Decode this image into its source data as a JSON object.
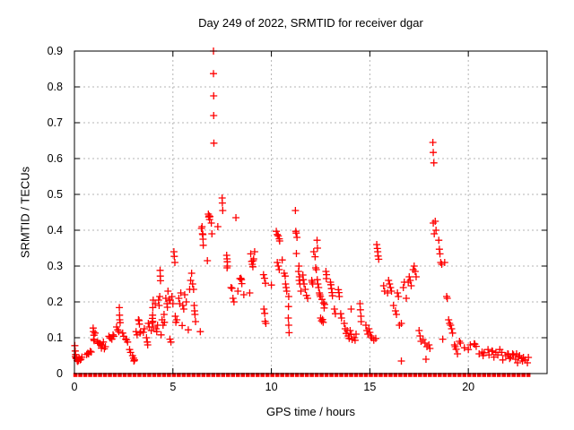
{
  "title": "Day 249 of 2022, SRMTID for receiver dgar",
  "colors": {
    "marker": "#ff0000",
    "grid": "#b4b4b4",
    "axis": "#000000",
    "background": "#ffffff"
  },
  "chart_data": {
    "type": "scatter",
    "title": "Day 249 of 2022, SRMTID for receiver dgar",
    "xlabel": "GPS time / hours",
    "ylabel": "SRMTID / TECUs",
    "xlim": [
      0,
      24
    ],
    "ylim": [
      0,
      0.9
    ],
    "xticks": [
      0,
      5,
      10,
      15,
      20
    ],
    "yticks": [
      0,
      0.1,
      0.2,
      0.3,
      0.4,
      0.5,
      0.6,
      0.7,
      0.8,
      0.9
    ],
    "grid": true,
    "legend": "none",
    "marker": "plus",
    "marker_color": "#ff0000",
    "zero_baseline": {
      "y": 0,
      "x_start": 0.05,
      "x_end": 23.15,
      "x_step": 0.25,
      "note": "dense overlapping points at SRMTID=0 forming a solid red strip"
    },
    "points": [
      [
        0.02,
        0.078
      ],
      [
        0.04,
        0.063
      ],
      [
        0.06,
        0.053
      ],
      [
        0.05,
        0.047
      ],
      [
        0.08,
        0.042
      ],
      [
        0.1,
        0.044
      ],
      [
        0.14,
        0.036
      ],
      [
        0.17,
        0.034
      ],
      [
        0.2,
        0.037
      ],
      [
        0.24,
        0.043
      ],
      [
        0.29,
        0.038
      ],
      [
        0.33,
        0.04
      ],
      [
        0.38,
        0.046
      ],
      [
        0.62,
        0.053
      ],
      [
        0.68,
        0.057
      ],
      [
        0.72,
        0.055
      ],
      [
        0.8,
        0.062
      ],
      [
        0.85,
        0.06
      ],
      [
        0.95,
        0.127
      ],
      [
        0.97,
        0.117
      ],
      [
        0.99,
        0.107
      ],
      [
        0.98,
        0.096
      ],
      [
        1.0,
        0.092
      ],
      [
        1.05,
        0.113
      ],
      [
        1.17,
        0.088
      ],
      [
        1.22,
        0.084
      ],
      [
        1.27,
        0.084
      ],
      [
        1.32,
        0.083
      ],
      [
        1.37,
        0.071
      ],
      [
        1.42,
        0.08
      ],
      [
        1.47,
        0.088
      ],
      [
        1.52,
        0.069
      ],
      [
        1.57,
        0.075
      ],
      [
        1.75,
        0.104
      ],
      [
        1.8,
        0.1
      ],
      [
        1.83,
        0.099
      ],
      [
        1.9,
        0.096
      ],
      [
        1.96,
        0.108
      ],
      [
        2.0,
        0.104
      ],
      [
        2.14,
        0.13
      ],
      [
        2.2,
        0.122
      ],
      [
        2.25,
        0.117
      ],
      [
        2.28,
        0.184
      ],
      [
        2.29,
        0.163
      ],
      [
        2.3,
        0.15
      ],
      [
        2.32,
        0.142
      ],
      [
        2.45,
        0.113
      ],
      [
        2.5,
        0.104
      ],
      [
        2.6,
        0.096
      ],
      [
        2.65,
        0.094
      ],
      [
        2.7,
        0.088
      ],
      [
        2.8,
        0.067
      ],
      [
        2.85,
        0.059
      ],
      [
        2.95,
        0.05
      ],
      [
        3.0,
        0.043
      ],
      [
        3.02,
        0.035
      ],
      [
        3.05,
        0.038
      ],
      [
        3.13,
        0.117
      ],
      [
        3.18,
        0.108
      ],
      [
        3.25,
        0.15
      ],
      [
        3.28,
        0.148
      ],
      [
        3.3,
        0.138
      ],
      [
        3.33,
        0.113
      ],
      [
        3.36,
        0.117
      ],
      [
        3.5,
        0.115
      ],
      [
        3.55,
        0.125
      ],
      [
        3.66,
        0.1
      ],
      [
        3.7,
        0.088
      ],
      [
        3.72,
        0.08
      ],
      [
        3.75,
        0.14
      ],
      [
        3.8,
        0.13
      ],
      [
        3.9,
        0.12
      ],
      [
        3.95,
        0.142
      ],
      [
        3.96,
        0.154
      ],
      [
        3.97,
        0.163
      ],
      [
        3.98,
        0.184
      ],
      [
        4.0,
        0.205
      ],
      [
        3.98,
        0.146
      ],
      [
        3.99,
        0.13
      ],
      [
        4.1,
        0.195
      ],
      [
        4.15,
        0.125
      ],
      [
        4.18,
        0.117
      ],
      [
        4.22,
        0.135
      ],
      [
        4.27,
        0.205
      ],
      [
        4.3,
        0.19
      ],
      [
        4.33,
        0.215
      ],
      [
        4.35,
        0.288
      ],
      [
        4.36,
        0.272
      ],
      [
        4.37,
        0.259
      ],
      [
        4.4,
        0.108
      ],
      [
        4.45,
        0.15
      ],
      [
        4.5,
        0.135
      ],
      [
        4.55,
        0.165
      ],
      [
        4.57,
        0.143
      ],
      [
        4.64,
        0.21
      ],
      [
        4.7,
        0.195
      ],
      [
        4.72,
        0.185
      ],
      [
        4.75,
        0.23
      ],
      [
        4.8,
        0.205
      ],
      [
        4.87,
        0.205
      ],
      [
        4.85,
        0.096
      ],
      [
        4.9,
        0.088
      ],
      [
        4.95,
        0.215
      ],
      [
        5.0,
        0.195
      ],
      [
        5.05,
        0.34
      ],
      [
        5.07,
        0.327
      ],
      [
        5.1,
        0.31
      ],
      [
        5.12,
        0.16
      ],
      [
        5.15,
        0.143
      ],
      [
        5.2,
        0.15
      ],
      [
        5.3,
        0.21
      ],
      [
        5.35,
        0.195
      ],
      [
        5.4,
        0.225
      ],
      [
        5.47,
        0.134
      ],
      [
        5.5,
        0.19
      ],
      [
        5.55,
        0.18
      ],
      [
        5.6,
        0.22
      ],
      [
        5.68,
        0.2
      ],
      [
        5.78,
        0.122
      ],
      [
        5.85,
        0.235
      ],
      [
        5.9,
        0.26
      ],
      [
        5.95,
        0.28
      ],
      [
        6.0,
        0.25
      ],
      [
        6.05,
        0.235
      ],
      [
        6.08,
        0.19
      ],
      [
        6.1,
        0.175
      ],
      [
        6.12,
        0.165
      ],
      [
        6.15,
        0.145
      ],
      [
        6.39,
        0.117
      ],
      [
        6.45,
        0.405
      ],
      [
        6.48,
        0.41
      ],
      [
        6.5,
        0.39
      ],
      [
        6.52,
        0.388
      ],
      [
        6.53,
        0.375
      ],
      [
        6.54,
        0.358
      ],
      [
        6.75,
        0.315
      ],
      [
        6.8,
        0.445
      ],
      [
        6.82,
        0.437
      ],
      [
        6.84,
        0.44
      ],
      [
        6.86,
        0.43
      ],
      [
        6.88,
        0.438
      ],
      [
        6.95,
        0.42
      ],
      [
        6.98,
        0.39
      ],
      [
        7.06,
        0.9
      ],
      [
        7.06,
        0.837
      ],
      [
        7.07,
        0.775
      ],
      [
        7.07,
        0.72
      ],
      [
        7.08,
        0.643
      ],
      [
        7.28,
        0.41
      ],
      [
        7.5,
        0.49
      ],
      [
        7.51,
        0.476
      ],
      [
        7.53,
        0.455
      ],
      [
        7.73,
        0.33
      ],
      [
        7.75,
        0.32
      ],
      [
        7.76,
        0.312
      ],
      [
        7.77,
        0.3
      ],
      [
        7.75,
        0.295
      ],
      [
        7.95,
        0.24
      ],
      [
        8.0,
        0.238
      ],
      [
        8.05,
        0.21
      ],
      [
        8.1,
        0.2
      ],
      [
        8.2,
        0.435
      ],
      [
        8.3,
        0.23
      ],
      [
        8.4,
        0.265
      ],
      [
        8.45,
        0.266
      ],
      [
        8.48,
        0.262
      ],
      [
        8.5,
        0.251
      ],
      [
        8.6,
        0.22
      ],
      [
        8.9,
        0.225
      ],
      [
        8.95,
        0.334
      ],
      [
        9.0,
        0.313
      ],
      [
        9.03,
        0.305
      ],
      [
        9.06,
        0.298
      ],
      [
        9.08,
        0.315
      ],
      [
        9.1,
        0.32
      ],
      [
        9.15,
        0.34
      ],
      [
        9.6,
        0.276
      ],
      [
        9.65,
        0.266
      ],
      [
        9.7,
        0.252
      ],
      [
        9.62,
        0.18
      ],
      [
        9.66,
        0.168
      ],
      [
        9.68,
        0.146
      ],
      [
        9.72,
        0.14
      ],
      [
        10.0,
        0.247
      ],
      [
        10.25,
        0.397
      ],
      [
        10.3,
        0.388
      ],
      [
        10.35,
        0.384
      ],
      [
        10.4,
        0.376
      ],
      [
        10.42,
        0.37
      ],
      [
        10.3,
        0.31
      ],
      [
        10.35,
        0.3
      ],
      [
        10.4,
        0.29
      ],
      [
        10.55,
        0.317
      ],
      [
        10.65,
        0.28
      ],
      [
        10.7,
        0.272
      ],
      [
        10.72,
        0.25
      ],
      [
        10.75,
        0.24
      ],
      [
        10.78,
        0.23
      ],
      [
        10.88,
        0.215
      ],
      [
        10.87,
        0.187
      ],
      [
        10.86,
        0.155
      ],
      [
        10.88,
        0.135
      ],
      [
        10.9,
        0.114
      ],
      [
        11.22,
        0.455
      ],
      [
        11.24,
        0.397
      ],
      [
        11.26,
        0.392
      ],
      [
        11.3,
        0.38
      ],
      [
        11.27,
        0.335
      ],
      [
        11.38,
        0.285
      ],
      [
        11.4,
        0.3
      ],
      [
        11.42,
        0.27
      ],
      [
        11.41,
        0.26
      ],
      [
        11.45,
        0.25
      ],
      [
        11.5,
        0.23
      ],
      [
        11.6,
        0.275
      ],
      [
        11.62,
        0.262
      ],
      [
        11.66,
        0.25
      ],
      [
        11.72,
        0.235
      ],
      [
        11.78,
        0.218
      ],
      [
        11.84,
        0.21
      ],
      [
        12.05,
        0.26
      ],
      [
        12.07,
        0.255
      ],
      [
        12.1,
        0.25
      ],
      [
        12.15,
        0.34
      ],
      [
        12.22,
        0.326
      ],
      [
        12.25,
        0.295
      ],
      [
        12.28,
        0.29
      ],
      [
        12.32,
        0.372
      ],
      [
        12.34,
        0.35
      ],
      [
        12.33,
        0.262
      ],
      [
        12.36,
        0.25
      ],
      [
        12.4,
        0.24
      ],
      [
        12.44,
        0.225
      ],
      [
        12.46,
        0.22
      ],
      [
        12.49,
        0.215
      ],
      [
        12.5,
        0.155
      ],
      [
        12.55,
        0.147
      ],
      [
        12.6,
        0.151
      ],
      [
        12.63,
        0.143
      ],
      [
        12.57,
        0.207
      ],
      [
        12.65,
        0.197
      ],
      [
        12.7,
        0.193
      ],
      [
        12.68,
        0.183
      ],
      [
        12.77,
        0.285
      ],
      [
        12.8,
        0.276
      ],
      [
        12.79,
        0.265
      ],
      [
        13.0,
        0.255
      ],
      [
        13.02,
        0.248
      ],
      [
        13.05,
        0.237
      ],
      [
        13.08,
        0.226
      ],
      [
        13.1,
        0.217
      ],
      [
        13.2,
        0.18
      ],
      [
        13.25,
        0.167
      ],
      [
        13.4,
        0.234
      ],
      [
        13.43,
        0.226
      ],
      [
        13.45,
        0.215
      ],
      [
        13.52,
        0.167
      ],
      [
        13.56,
        0.155
      ],
      [
        13.7,
        0.14
      ],
      [
        13.75,
        0.125
      ],
      [
        13.8,
        0.112
      ],
      [
        13.85,
        0.12
      ],
      [
        13.9,
        0.105
      ],
      [
        13.95,
        0.098
      ],
      [
        14.0,
        0.12
      ],
      [
        14.05,
        0.18
      ],
      [
        14.06,
        0.109
      ],
      [
        14.1,
        0.095
      ],
      [
        14.2,
        0.1
      ],
      [
        14.25,
        0.093
      ],
      [
        14.3,
        0.11
      ],
      [
        14.5,
        0.195
      ],
      [
        14.52,
        0.178
      ],
      [
        14.55,
        0.16
      ],
      [
        14.56,
        0.145
      ],
      [
        14.8,
        0.135
      ],
      [
        14.85,
        0.12
      ],
      [
        14.9,
        0.11
      ],
      [
        14.95,
        0.125
      ],
      [
        15.0,
        0.115
      ],
      [
        15.05,
        0.105
      ],
      [
        15.1,
        0.1
      ],
      [
        15.2,
        0.093
      ],
      [
        15.3,
        0.098
      ],
      [
        15.35,
        0.36
      ],
      [
        15.38,
        0.349
      ],
      [
        15.4,
        0.34
      ],
      [
        15.42,
        0.328
      ],
      [
        15.45,
        0.319
      ],
      [
        15.7,
        0.245
      ],
      [
        15.75,
        0.23
      ],
      [
        15.9,
        0.225
      ],
      [
        15.95,
        0.26
      ],
      [
        16.0,
        0.25
      ],
      [
        16.05,
        0.24
      ],
      [
        16.1,
        0.23
      ],
      [
        16.2,
        0.19
      ],
      [
        16.3,
        0.175
      ],
      [
        16.35,
        0.165
      ],
      [
        16.4,
        0.225
      ],
      [
        16.45,
        0.215
      ],
      [
        16.5,
        0.135
      ],
      [
        16.6,
        0.14
      ],
      [
        16.6,
        0.035
      ],
      [
        16.7,
        0.24
      ],
      [
        16.75,
        0.255
      ],
      [
        16.85,
        0.21
      ],
      [
        16.95,
        0.255
      ],
      [
        17.0,
        0.27
      ],
      [
        17.05,
        0.26
      ],
      [
        17.1,
        0.245
      ],
      [
        17.2,
        0.29
      ],
      [
        17.25,
        0.3
      ],
      [
        17.3,
        0.285
      ],
      [
        17.35,
        0.27
      ],
      [
        17.5,
        0.12
      ],
      [
        17.55,
        0.105
      ],
      [
        17.6,
        0.09
      ],
      [
        17.7,
        0.095
      ],
      [
        17.8,
        0.085
      ],
      [
        17.85,
        0.04
      ],
      [
        17.9,
        0.075
      ],
      [
        18.0,
        0.08
      ],
      [
        18.05,
        0.07
      ],
      [
        18.2,
        0.645
      ],
      [
        18.22,
        0.617
      ],
      [
        18.25,
        0.588
      ],
      [
        18.22,
        0.42
      ],
      [
        18.27,
        0.39
      ],
      [
        18.32,
        0.425
      ],
      [
        18.36,
        0.4
      ],
      [
        18.5,
        0.372
      ],
      [
        18.53,
        0.347
      ],
      [
        18.56,
        0.334
      ],
      [
        18.6,
        0.31
      ],
      [
        18.65,
        0.305
      ],
      [
        18.7,
        0.096
      ],
      [
        18.8,
        0.31
      ],
      [
        18.9,
        0.215
      ],
      [
        18.93,
        0.21
      ],
      [
        19.0,
        0.15
      ],
      [
        19.05,
        0.14
      ],
      [
        19.1,
        0.135
      ],
      [
        19.15,
        0.125
      ],
      [
        19.2,
        0.113
      ],
      [
        19.3,
        0.08
      ],
      [
        19.33,
        0.075
      ],
      [
        19.38,
        0.068
      ],
      [
        19.45,
        0.055
      ],
      [
        19.55,
        0.09
      ],
      [
        19.6,
        0.085
      ],
      [
        19.8,
        0.072
      ],
      [
        20.0,
        0.067
      ],
      [
        20.1,
        0.08
      ],
      [
        20.3,
        0.083
      ],
      [
        20.33,
        0.082
      ],
      [
        20.4,
        0.076
      ],
      [
        20.55,
        0.055
      ],
      [
        20.7,
        0.06
      ],
      [
        20.75,
        0.05
      ],
      [
        20.8,
        0.058
      ],
      [
        21.0,
        0.067
      ],
      [
        21.05,
        0.052
      ],
      [
        21.2,
        0.063
      ],
      [
        21.23,
        0.062
      ],
      [
        21.3,
        0.046
      ],
      [
        21.4,
        0.059
      ],
      [
        21.5,
        0.052
      ],
      [
        21.6,
        0.067
      ],
      [
        21.7,
        0.059
      ],
      [
        21.75,
        0.038
      ],
      [
        21.9,
        0.05
      ],
      [
        22.0,
        0.055
      ],
      [
        22.03,
        0.054
      ],
      [
        22.1,
        0.042
      ],
      [
        22.15,
        0.046
      ],
      [
        22.25,
        0.055
      ],
      [
        22.3,
        0.052
      ],
      [
        22.4,
        0.04
      ],
      [
        22.45,
        0.055
      ],
      [
        22.5,
        0.03
      ],
      [
        22.55,
        0.046
      ],
      [
        22.6,
        0.05
      ],
      [
        22.7,
        0.042
      ],
      [
        22.75,
        0.035
      ],
      [
        22.8,
        0.045
      ],
      [
        22.9,
        0.038
      ],
      [
        23.0,
        0.03
      ],
      [
        23.05,
        0.045
      ]
    ]
  }
}
